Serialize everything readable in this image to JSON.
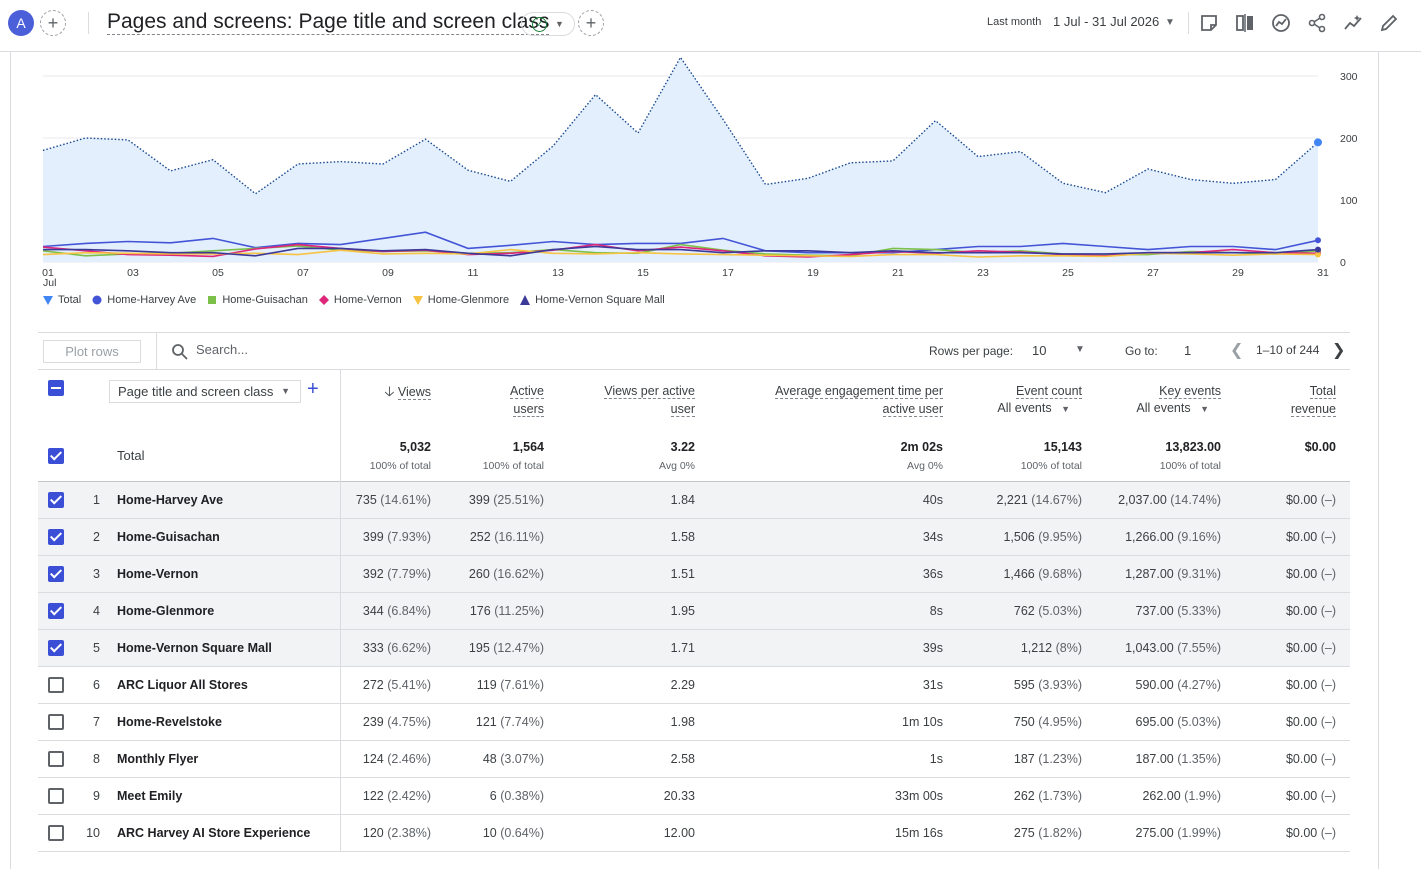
{
  "header": {
    "avatar_letter": "A",
    "title": "Pages and screens: Page title and screen class",
    "date_label": "Last month",
    "date_range": "1 Jul - 31 Jul 2026"
  },
  "chart_data": {
    "type": "line",
    "x": [
      "01",
      "02",
      "03",
      "04",
      "05",
      "06",
      "07",
      "08",
      "09",
      "10",
      "11",
      "12",
      "13",
      "14",
      "15",
      "16",
      "17",
      "18",
      "19",
      "20",
      "21",
      "22",
      "23",
      "24",
      "25",
      "26",
      "27",
      "28",
      "29",
      "30",
      "31"
    ],
    "x_tick_labels": [
      "01",
      "03",
      "05",
      "07",
      "09",
      "11",
      "13",
      "15",
      "17",
      "19",
      "21",
      "23",
      "25",
      "27",
      "29",
      "31"
    ],
    "x_sublabel": "Jul",
    "y_ticks": [
      "0",
      "100",
      "200",
      "300"
    ],
    "ylim": [
      0,
      300
    ],
    "series": [
      {
        "name": "Total",
        "color": "#4285f4",
        "style": "dotted-area",
        "values": [
          180,
          200,
          197,
          147,
          165,
          110,
          158,
          162,
          158,
          198,
          148,
          130,
          187,
          270,
          208,
          330,
          230,
          125,
          135,
          160,
          163,
          228,
          170,
          178,
          127,
          112,
          150,
          133,
          127,
          133,
          193
        ]
      },
      {
        "name": "Home-Harvey Ave",
        "color": "#4355d6",
        "values": [
          25,
          30,
          33,
          31,
          38,
          23,
          30,
          28,
          38,
          48,
          22,
          27,
          33,
          28,
          30,
          30,
          38,
          18,
          15,
          15,
          15,
          20,
          25,
          25,
          30,
          25,
          20,
          25,
          25,
          20,
          35
        ]
      },
      {
        "name": "Home-Guisachan",
        "color": "#7cc04a",
        "values": [
          18,
          10,
          13,
          14,
          18,
          22,
          26,
          19,
          17,
          18,
          14,
          15,
          20,
          15,
          14,
          28,
          19,
          13,
          11,
          10,
          22,
          20,
          15,
          18,
          13,
          12,
          12,
          17,
          15,
          13,
          18
        ]
      },
      {
        "name": "Home-Vernon",
        "color": "#e0267a",
        "values": [
          24,
          18,
          12,
          11,
          9,
          21,
          28,
          22,
          17,
          19,
          12,
          14,
          19,
          28,
          18,
          24,
          18,
          10,
          8,
          12,
          17,
          14,
          18,
          16,
          12,
          10,
          15,
          15,
          20,
          15,
          14
        ]
      },
      {
        "name": "Home-Glenmore",
        "color": "#f6c343",
        "values": [
          12,
          15,
          14,
          13,
          13,
          14,
          12,
          19,
          13,
          14,
          13,
          20,
          14,
          13,
          15,
          13,
          12,
          11,
          10,
          9,
          12,
          12,
          8,
          10,
          10,
          9,
          14,
          13,
          11,
          13,
          12
        ]
      },
      {
        "name": "Home-Vernon Square Mall",
        "color": "#3c3a99",
        "values": [
          20,
          20,
          18,
          15,
          15,
          10,
          22,
          22,
          18,
          20,
          14,
          10,
          20,
          25,
          20,
          20,
          15,
          18,
          18,
          15,
          18,
          15,
          15,
          15,
          13,
          13,
          15,
          15,
          15,
          15,
          20
        ]
      }
    ]
  },
  "toolbar": {
    "plot_rows_label": "Plot rows",
    "search_placeholder": "Search...",
    "rows_per_page_label": "Rows per page:",
    "rows_per_page_value": "10",
    "goto_label": "Go to:",
    "goto_value": "1",
    "page_info": "1–10 of 244"
  },
  "table": {
    "dimension_label": "Page title and screen class",
    "columns": {
      "views": "Views",
      "active_users_1": "Active",
      "active_users_2": "users",
      "vpau_1": "Views per active",
      "vpau_2": "user",
      "aet_1": "Average engagement time per",
      "aet_2": "active user",
      "event_count": "Event count",
      "event_filter": "All events",
      "key_events": "Key events",
      "key_filter": "All events",
      "revenue_1": "Total",
      "revenue_2": "revenue"
    },
    "total": {
      "label": "Total",
      "views": "5,032",
      "views_sub": "100% of total",
      "users": "1,564",
      "users_sub": "100% of total",
      "vpau": "3.22",
      "vpau_sub": "Avg 0%",
      "aet": "2m 02s",
      "aet_sub": "Avg 0%",
      "events": "15,143",
      "events_sub": "100% of total",
      "key": "13,823.00",
      "key_sub": "100% of total",
      "revenue": "$0.00"
    },
    "rows": [
      {
        "rank": "1",
        "name": "Home-Harvey Ave",
        "checked": true,
        "views": "735",
        "views_pct": "(14.61%)",
        "users": "399",
        "users_pct": "(25.51%)",
        "vpau": "1.84",
        "aet": "40s",
        "events": "2,221",
        "events_pct": "(14.67%)",
        "key": "2,037.00",
        "key_pct": "(14.74%)",
        "revenue": "$0.00",
        "revenue_pct": "(–)"
      },
      {
        "rank": "2",
        "name": "Home-Guisachan",
        "checked": true,
        "views": "399",
        "views_pct": "(7.93%)",
        "users": "252",
        "users_pct": "(16.11%)",
        "vpau": "1.58",
        "aet": "34s",
        "events": "1,506",
        "events_pct": "(9.95%)",
        "key": "1,266.00",
        "key_pct": "(9.16%)",
        "revenue": "$0.00",
        "revenue_pct": "(–)"
      },
      {
        "rank": "3",
        "name": "Home-Vernon",
        "checked": true,
        "views": "392",
        "views_pct": "(7.79%)",
        "users": "260",
        "users_pct": "(16.62%)",
        "vpau": "1.51",
        "aet": "36s",
        "events": "1,466",
        "events_pct": "(9.68%)",
        "key": "1,287.00",
        "key_pct": "(9.31%)",
        "revenue": "$0.00",
        "revenue_pct": "(–)"
      },
      {
        "rank": "4",
        "name": "Home-Glenmore",
        "checked": true,
        "views": "344",
        "views_pct": "(6.84%)",
        "users": "176",
        "users_pct": "(11.25%)",
        "vpau": "1.95",
        "aet": "8s",
        "events": "762",
        "events_pct": "(5.03%)",
        "key": "737.00",
        "key_pct": "(5.33%)",
        "revenue": "$0.00",
        "revenue_pct": "(–)"
      },
      {
        "rank": "5",
        "name": "Home-Vernon Square Mall",
        "checked": true,
        "views": "333",
        "views_pct": "(6.62%)",
        "users": "195",
        "users_pct": "(12.47%)",
        "vpau": "1.71",
        "aet": "39s",
        "events": "1,212",
        "events_pct": "(8%)",
        "key": "1,043.00",
        "key_pct": "(7.55%)",
        "revenue": "$0.00",
        "revenue_pct": "(–)"
      },
      {
        "rank": "6",
        "name": "ARC Liquor All Stores",
        "checked": false,
        "views": "272",
        "views_pct": "(5.41%)",
        "users": "119",
        "users_pct": "(7.61%)",
        "vpau": "2.29",
        "aet": "31s",
        "events": "595",
        "events_pct": "(3.93%)",
        "key": "590.00",
        "key_pct": "(4.27%)",
        "revenue": "$0.00",
        "revenue_pct": "(–)"
      },
      {
        "rank": "7",
        "name": "Home-Revelstoke",
        "checked": false,
        "views": "239",
        "views_pct": "(4.75%)",
        "users": "121",
        "users_pct": "(7.74%)",
        "vpau": "1.98",
        "aet": "1m 10s",
        "events": "750",
        "events_pct": "(4.95%)",
        "key": "695.00",
        "key_pct": "(5.03%)",
        "revenue": "$0.00",
        "revenue_pct": "(–)"
      },
      {
        "rank": "8",
        "name": "Monthly Flyer",
        "checked": false,
        "views": "124",
        "views_pct": "(2.46%)",
        "users": "48",
        "users_pct": "(3.07%)",
        "vpau": "2.58",
        "aet": "1s",
        "events": "187",
        "events_pct": "(1.23%)",
        "key": "187.00",
        "key_pct": "(1.35%)",
        "revenue": "$0.00",
        "revenue_pct": "(–)"
      },
      {
        "rank": "9",
        "name": "Meet Emily",
        "checked": false,
        "views": "122",
        "views_pct": "(2.42%)",
        "users": "6",
        "users_pct": "(0.38%)",
        "vpau": "20.33",
        "aet": "33m 00s",
        "events": "262",
        "events_pct": "(1.73%)",
        "key": "262.00",
        "key_pct": "(1.9%)",
        "revenue": "$0.00",
        "revenue_pct": "(–)"
      },
      {
        "rank": "10",
        "name": "ARC Harvey AI Store Experience",
        "checked": false,
        "views": "120",
        "views_pct": "(2.38%)",
        "users": "10",
        "users_pct": "(0.64%)",
        "vpau": "12.00",
        "aet": "15m 16s",
        "events": "275",
        "events_pct": "(1.82%)",
        "key": "275.00",
        "key_pct": "(1.99%)",
        "revenue": "$0.00",
        "revenue_pct": "(–)"
      }
    ]
  }
}
